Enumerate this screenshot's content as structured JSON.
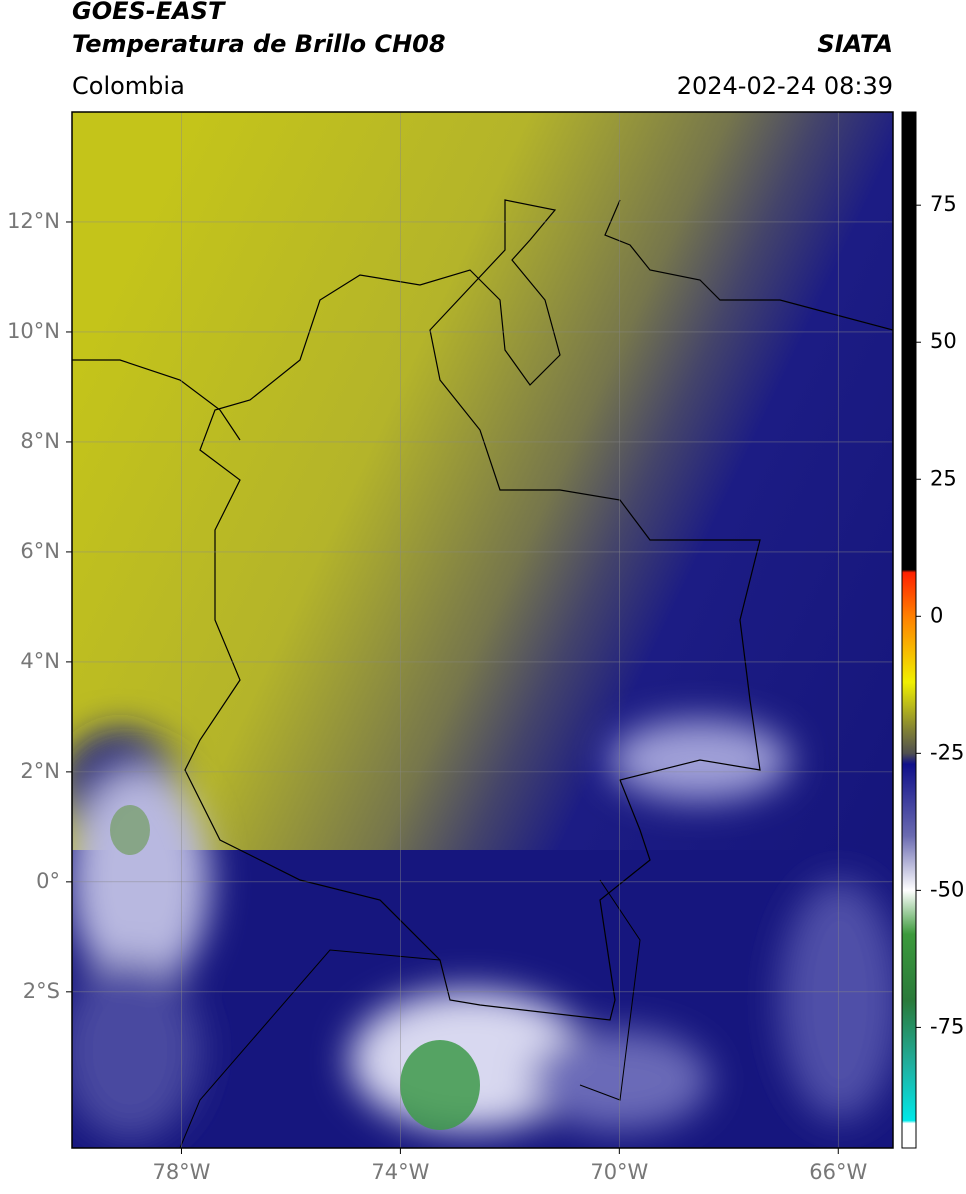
{
  "header": {
    "title": "GOES-EAST",
    "subtitle": "Temperatura de Brillo CH08",
    "region": "Colombia",
    "source": "SIATA",
    "datetime": "2024-02-24 08:39"
  },
  "map": {
    "xlim": [
      -80,
      -65
    ],
    "ylim": [
      -4.84,
      14
    ],
    "grid": true,
    "xticks": [
      {
        "value": -78,
        "label": "78°W"
      },
      {
        "value": -74,
        "label": "74°W"
      },
      {
        "value": -70,
        "label": "70°W"
      },
      {
        "value": -66,
        "label": "66°W"
      }
    ],
    "yticks": [
      {
        "value": 12,
        "label": "12°N"
      },
      {
        "value": 10,
        "label": "10°N"
      },
      {
        "value": 8,
        "label": "8°N"
      },
      {
        "value": 6,
        "label": "6°N"
      },
      {
        "value": 4,
        "label": "4°N"
      },
      {
        "value": 2,
        "label": "2°N"
      },
      {
        "value": 0,
        "label": "0°"
      },
      {
        "value": -2,
        "label": "2°S"
      }
    ]
  },
  "colorbar": {
    "lim": [
      -97,
      92
    ],
    "ticks": [
      75,
      50,
      25,
      0,
      -25,
      -50,
      -75
    ],
    "stops": [
      {
        "value": 92,
        "color": "#000000"
      },
      {
        "value": 8.5,
        "color": "#000000"
      },
      {
        "value": 8,
        "color": "#ff2000"
      },
      {
        "value": 0,
        "color": "#ff8000"
      },
      {
        "value": -12,
        "color": "#f0f000"
      },
      {
        "value": -20,
        "color": "#8a8a30"
      },
      {
        "value": -25,
        "color": "#505050"
      },
      {
        "value": -27,
        "color": "#10108a"
      },
      {
        "value": -40,
        "color": "#6a6ab0"
      },
      {
        "value": -50,
        "color": "#ffffff"
      },
      {
        "value": -58,
        "color": "#3c9a3c"
      },
      {
        "value": -70,
        "color": "#2a7a3a"
      },
      {
        "value": -82,
        "color": "#20b0a0"
      },
      {
        "value": -92,
        "color": "#00e8e8"
      },
      {
        "value": -92.5,
        "color": "#ffffff"
      },
      {
        "value": -97,
        "color": "#ffffff"
      }
    ]
  }
}
